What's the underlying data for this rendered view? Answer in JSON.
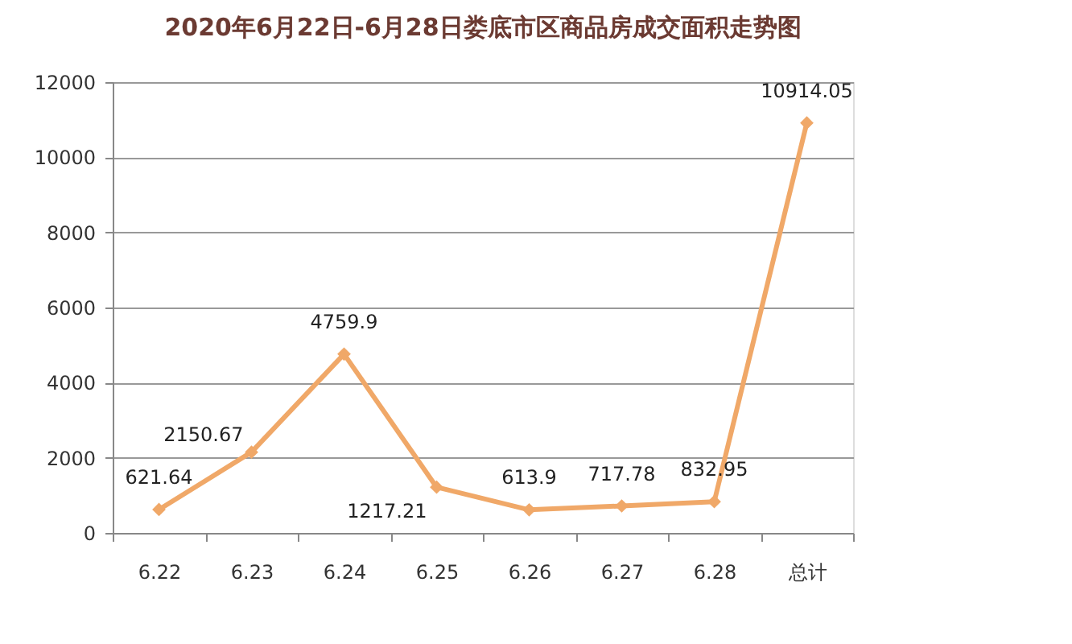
{
  "chart_data": {
    "type": "line",
    "title": "2020年6月22日-6月28日娄底市区商品房成交面积走势图",
    "categories": [
      "6.22",
      "6.23",
      "6.24",
      "6.25",
      "6.26",
      "6.27",
      "6.28",
      "总计"
    ],
    "series": [
      {
        "color": "#f0a868",
        "values": [
          621.64,
          2150.67,
          4759.9,
          1217.21,
          613.9,
          717.78,
          832.95,
          10914.05
        ]
      }
    ],
    "ylim": [
      0,
      12000
    ],
    "yticks": [
      0,
      2000,
      4000,
      6000,
      8000,
      10000,
      12000
    ],
    "grid": "y",
    "marker": "diamond",
    "line_style": "solid",
    "data_labels": true,
    "legend": false
  }
}
